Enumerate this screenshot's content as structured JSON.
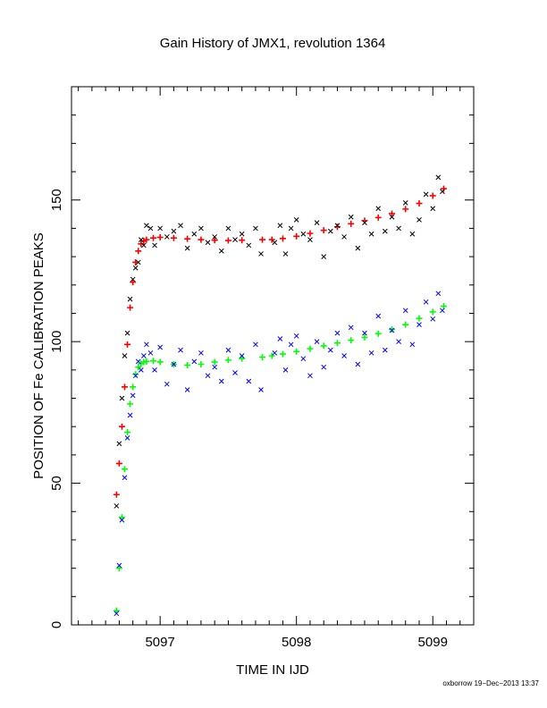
{
  "chart_data": {
    "type": "scatter",
    "title": "Gain History of JMX1, revolution 1364",
    "xlabel": "TIME IN IJD",
    "ylabel": "POSITION OF Fe CALIBRATION PEAKS",
    "footer": "oxborrow 19−Dec−2013 13:37",
    "xlim": [
      5096.35,
      5099.3
    ],
    "ylim": [
      0,
      190
    ],
    "xticks": [
      {
        "value": 5097,
        "label": "5097"
      },
      {
        "value": 5098,
        "label": "5098"
      },
      {
        "value": 5099,
        "label": "5099"
      }
    ],
    "yticks": [
      {
        "value": 0,
        "label": "0"
      },
      {
        "value": 50,
        "label": "50"
      },
      {
        "value": 100,
        "label": "100"
      },
      {
        "value": 150,
        "label": "150"
      }
    ],
    "grid": false,
    "colors": {
      "upper_raw": "#000000",
      "upper_fit": "#ff0000",
      "lower_raw": "#0000ff",
      "lower_fit": "#00ff00"
    },
    "series": [
      {
        "role": "upper_fit",
        "marker": "plus",
        "x": [
          5096.68,
          5096.7,
          5096.72,
          5096.74,
          5096.76,
          5096.78,
          5096.8,
          5096.82,
          5096.84,
          5096.86,
          5096.88,
          5096.9,
          5096.95,
          5097.0,
          5097.1,
          5097.2,
          5097.3,
          5097.4,
          5097.5,
          5097.6,
          5097.75,
          5097.82,
          5097.9,
          5098.0,
          5098.1,
          5098.2,
          5098.3,
          5098.4,
          5098.5,
          5098.6,
          5098.7,
          5098.8,
          5098.9,
          5099.0,
          5099.08
        ],
        "y": [
          46,
          57,
          70,
          84,
          99,
          112,
          121,
          128,
          132,
          134.5,
          135.5,
          136,
          136.6,
          136.8,
          136.6,
          136.3,
          136.0,
          135.8,
          135.7,
          135.8,
          136.0,
          136.0,
          136.4,
          137.2,
          138.2,
          139.3,
          140.5,
          141.6,
          142.7,
          143.8,
          145.2,
          146.8,
          148.8,
          151.5,
          154.0
        ]
      },
      {
        "role": "lower_fit",
        "marker": "plus",
        "x": [
          5096.68,
          5096.7,
          5096.72,
          5096.74,
          5096.76,
          5096.78,
          5096.8,
          5096.82,
          5096.84,
          5096.86,
          5096.88,
          5096.9,
          5096.95,
          5097.0,
          5097.1,
          5097.2,
          5097.3,
          5097.4,
          5097.5,
          5097.6,
          5097.75,
          5097.82,
          5097.9,
          5098.0,
          5098.1,
          5098.2,
          5098.3,
          5098.4,
          5098.5,
          5098.6,
          5098.7,
          5098.8,
          5098.9,
          5099.0,
          5099.08
        ],
        "y": [
          5,
          20,
          38,
          55,
          68,
          78,
          84,
          88.5,
          91,
          92.2,
          92.8,
          93.0,
          93.2,
          92.8,
          92.0,
          91.7,
          92.0,
          92.8,
          93.5,
          94.0,
          94.5,
          95.0,
          95.6,
          96.5,
          97.5,
          98.5,
          99.5,
          100.5,
          101.5,
          102.8,
          104.3,
          106.0,
          108.2,
          110.5,
          112.5
        ]
      },
      {
        "role": "upper_raw",
        "marker": "cross",
        "x": [
          5096.68,
          5096.7,
          5096.72,
          5096.74,
          5096.76,
          5096.78,
          5096.8,
          5096.82,
          5096.84,
          5096.86,
          5096.88,
          5096.9,
          5096.93,
          5096.96,
          5097.0,
          5097.05,
          5097.1,
          5097.15,
          5097.2,
          5097.25,
          5097.3,
          5097.35,
          5097.4,
          5097.45,
          5097.5,
          5097.55,
          5097.6,
          5097.65,
          5097.7,
          5097.74,
          5097.84,
          5097.88,
          5097.92,
          5097.96,
          5098.0,
          5098.05,
          5098.1,
          5098.15,
          5098.2,
          5098.25,
          5098.3,
          5098.35,
          5098.4,
          5098.45,
          5098.5,
          5098.55,
          5098.6,
          5098.65,
          5098.7,
          5098.75,
          5098.8,
          5098.85,
          5098.9,
          5098.95,
          5099.0,
          5099.04,
          5099.07
        ],
        "y": [
          42,
          64,
          80,
          95,
          103,
          115,
          122,
          126,
          128,
          136,
          134,
          141,
          140,
          134,
          140,
          137,
          139,
          141,
          133,
          138,
          140,
          135,
          137,
          132,
          140,
          136,
          138,
          134,
          140,
          131,
          135,
          141,
          131,
          140,
          143,
          138,
          136,
          142,
          130,
          139,
          141,
          137,
          144,
          133,
          142,
          138,
          147,
          139,
          144,
          140,
          149,
          138,
          143,
          152,
          147,
          158,
          153
        ]
      },
      {
        "role": "lower_raw",
        "marker": "cross",
        "x": [
          5096.68,
          5096.7,
          5096.72,
          5096.74,
          5096.76,
          5096.78,
          5096.8,
          5096.82,
          5096.84,
          5096.86,
          5096.88,
          5096.9,
          5096.93,
          5096.96,
          5097.0,
          5097.05,
          5097.1,
          5097.15,
          5097.2,
          5097.25,
          5097.3,
          5097.35,
          5097.4,
          5097.45,
          5097.5,
          5097.55,
          5097.6,
          5097.65,
          5097.7,
          5097.74,
          5097.84,
          5097.88,
          5097.92,
          5097.96,
          5098.0,
          5098.05,
          5098.1,
          5098.15,
          5098.2,
          5098.25,
          5098.3,
          5098.35,
          5098.4,
          5098.45,
          5098.5,
          5098.55,
          5098.6,
          5098.65,
          5098.7,
          5098.75,
          5098.8,
          5098.85,
          5098.9,
          5098.95,
          5099.0,
          5099.04,
          5099.07
        ],
        "y": [
          4,
          21,
          37,
          52,
          66,
          74,
          81,
          88,
          93,
          90,
          95,
          99,
          96,
          90,
          98,
          85,
          92,
          97,
          83,
          93,
          96,
          88,
          91,
          86,
          97,
          89,
          95,
          86,
          99,
          83,
          96,
          101,
          90,
          99,
          102,
          94,
          88,
          100,
          91,
          97,
          103,
          95,
          105,
          92,
          103,
          96,
          109,
          97,
          104,
          100,
          111,
          99,
          106,
          114,
          108,
          117,
          111
        ]
      }
    ]
  }
}
